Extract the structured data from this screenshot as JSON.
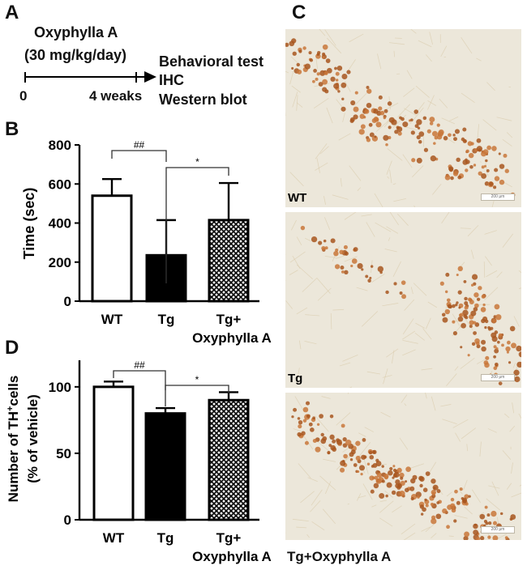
{
  "panelA": {
    "letter": "A",
    "drug": "Oxyphylla A",
    "dose": "(30 mg/kg/day)",
    "start": "0",
    "end": "4 weaks",
    "outcomes": [
      "Behavioral test",
      "IHC",
      "Western blot"
    ]
  },
  "panelC": {
    "letter": "C",
    "images": [
      {
        "label": "WT",
        "scale": "200 μm"
      },
      {
        "label": "Tg",
        "scale": "200 μm"
      },
      {
        "label": "Tg+Oxyphylla A",
        "scale": "200 μm"
      }
    ]
  },
  "chart_data": [
    {
      "panel": "B",
      "type": "bar",
      "ylabel": "Time (sec)",
      "ylim": [
        0,
        800
      ],
      "yticks": [
        0,
        200,
        400,
        600,
        800
      ],
      "categories": [
        "WT",
        "Tg",
        "Tg+"
      ],
      "category_sub": [
        "",
        "",
        "Oxyphylla A"
      ],
      "values": [
        540,
        235,
        415
      ],
      "error_upper": [
        625,
        415,
        605
      ],
      "fills": [
        "white",
        "black",
        "hatch"
      ],
      "significance": [
        {
          "from": 0,
          "to": 1,
          "label": "##"
        },
        {
          "from": 1,
          "to": 2,
          "label": "*"
        }
      ]
    },
    {
      "panel": "D",
      "type": "bar",
      "ylabel_line1": "Number of TH",
      "ylabel_sup": "+",
      "ylabel_line1_end": "cells",
      "ylabel_line2": "(% of vehicle)",
      "ylim": [
        0,
        120
      ],
      "yticks": [
        0,
        50,
        100
      ],
      "categories": [
        "WT",
        "Tg",
        "Tg+"
      ],
      "category_sub": [
        "",
        "",
        "Oxyphylla A"
      ],
      "values": [
        100,
        80,
        90
      ],
      "error_upper": [
        104,
        84,
        96
      ],
      "fills": [
        "white",
        "black",
        "hatch"
      ],
      "significance": [
        {
          "from": 0,
          "to": 1,
          "label": "##"
        },
        {
          "from": 1,
          "to": 2,
          "label": "*"
        }
      ]
    }
  ]
}
